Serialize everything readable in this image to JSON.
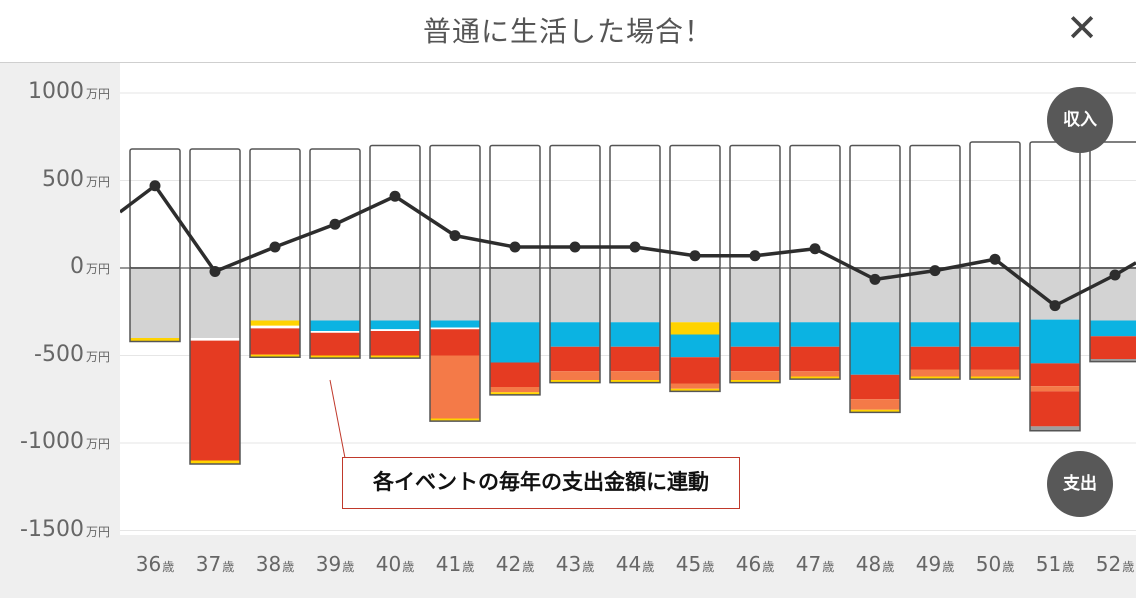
{
  "header": {
    "title": "普通に生活した場合！",
    "close_label": "✕"
  },
  "badges": {
    "income": "収入",
    "expense": "支出"
  },
  "annotation": "各イベントの毎年の支出金額に連動",
  "colors": {
    "base": "#d3d3d3",
    "white_line": "#ffffff",
    "blue": "#0bb3e2",
    "red": "#e53b22",
    "orange": "#f47a48",
    "yellow": "#ffd300",
    "gray": "#9e9e9e",
    "line": "#2d2d2d"
  },
  "chart_data": {
    "type": "bar+line",
    "y_unit": "万円",
    "x_unit": "歳",
    "yticks": [
      1000,
      500,
      0,
      -500,
      -1000,
      -1500
    ],
    "ylim": [
      -1660,
      1100
    ],
    "categories": [
      "36",
      "37",
      "38",
      "39",
      "40",
      "41",
      "42",
      "43",
      "44",
      "45",
      "46",
      "47",
      "48",
      "49",
      "50",
      "51",
      "52"
    ],
    "income": [
      680,
      680,
      680,
      680,
      700,
      700,
      700,
      700,
      700,
      700,
      700,
      700,
      700,
      700,
      720,
      720,
      720
    ],
    "balance_line": [
      470,
      -20,
      120,
      250,
      410,
      185,
      120,
      120,
      120,
      70,
      70,
      110,
      -65,
      -15,
      50,
      -215,
      -40
    ],
    "balance_line_edges": {
      "left": 320,
      "right": 30
    },
    "expense_segments": [
      [
        {
          "c": "base",
          "v": 400
        },
        {
          "c": "yellow",
          "v": 20
        }
      ],
      [
        {
          "c": "base",
          "v": 400
        },
        {
          "c": "white_line",
          "v": 15
        },
        {
          "c": "red",
          "v": 685
        },
        {
          "c": "yellow",
          "v": 20
        }
      ],
      [
        {
          "c": "base",
          "v": 300
        },
        {
          "c": "yellow",
          "v": 30
        },
        {
          "c": "white_line",
          "v": 15
        },
        {
          "c": "red",
          "v": 150
        },
        {
          "c": "yellow",
          "v": 15
        }
      ],
      [
        {
          "c": "base",
          "v": 300
        },
        {
          "c": "blue",
          "v": 60
        },
        {
          "c": "white_line",
          "v": 10
        },
        {
          "c": "red",
          "v": 130
        },
        {
          "c": "yellow",
          "v": 15
        }
      ],
      [
        {
          "c": "base",
          "v": 300
        },
        {
          "c": "blue",
          "v": 50
        },
        {
          "c": "white_line",
          "v": 10
        },
        {
          "c": "red",
          "v": 140
        },
        {
          "c": "yellow",
          "v": 15
        }
      ],
      [
        {
          "c": "base",
          "v": 300
        },
        {
          "c": "blue",
          "v": 40
        },
        {
          "c": "white_line",
          "v": 10
        },
        {
          "c": "red",
          "v": 150
        },
        {
          "c": "orange",
          "v": 360
        },
        {
          "c": "yellow",
          "v": 15
        }
      ],
      [
        {
          "c": "base",
          "v": 310
        },
        {
          "c": "blue",
          "v": 230
        },
        {
          "c": "red",
          "v": 140
        },
        {
          "c": "orange",
          "v": 30
        },
        {
          "c": "yellow",
          "v": 15
        }
      ],
      [
        {
          "c": "base",
          "v": 310
        },
        {
          "c": "blue",
          "v": 140
        },
        {
          "c": "red",
          "v": 140
        },
        {
          "c": "orange",
          "v": 50
        },
        {
          "c": "yellow",
          "v": 15
        }
      ],
      [
        {
          "c": "base",
          "v": 310
        },
        {
          "c": "blue",
          "v": 140
        },
        {
          "c": "red",
          "v": 140
        },
        {
          "c": "orange",
          "v": 50
        },
        {
          "c": "yellow",
          "v": 15
        }
      ],
      [
        {
          "c": "base",
          "v": 310
        },
        {
          "c": "yellow",
          "v": 70
        },
        {
          "c": "blue",
          "v": 130
        },
        {
          "c": "red",
          "v": 150
        },
        {
          "c": "orange",
          "v": 30
        },
        {
          "c": "yellow",
          "v": 15
        }
      ],
      [
        {
          "c": "base",
          "v": 310
        },
        {
          "c": "blue",
          "v": 140
        },
        {
          "c": "red",
          "v": 140
        },
        {
          "c": "orange",
          "v": 50
        },
        {
          "c": "yellow",
          "v": 15
        }
      ],
      [
        {
          "c": "base",
          "v": 310
        },
        {
          "c": "blue",
          "v": 140
        },
        {
          "c": "red",
          "v": 140
        },
        {
          "c": "orange",
          "v": 30
        },
        {
          "c": "yellow",
          "v": 15
        }
      ],
      [
        {
          "c": "base",
          "v": 310
        },
        {
          "c": "blue",
          "v": 300
        },
        {
          "c": "red",
          "v": 140
        },
        {
          "c": "orange",
          "v": 60
        },
        {
          "c": "yellow",
          "v": 15
        }
      ],
      [
        {
          "c": "base",
          "v": 310
        },
        {
          "c": "blue",
          "v": 140
        },
        {
          "c": "red",
          "v": 130
        },
        {
          "c": "orange",
          "v": 40
        },
        {
          "c": "yellow",
          "v": 15
        }
      ],
      [
        {
          "c": "base",
          "v": 310
        },
        {
          "c": "blue",
          "v": 140
        },
        {
          "c": "red",
          "v": 130
        },
        {
          "c": "orange",
          "v": 40
        },
        {
          "c": "yellow",
          "v": 15
        }
      ],
      [
        {
          "c": "base",
          "v": 295
        },
        {
          "c": "blue",
          "v": 250
        },
        {
          "c": "red",
          "v": 130
        },
        {
          "c": "orange",
          "v": 30
        },
        {
          "c": "red",
          "v": 200
        },
        {
          "c": "gray",
          "v": 25
        }
      ],
      [
        {
          "c": "base",
          "v": 300
        },
        {
          "c": "blue",
          "v": 90
        },
        {
          "c": "red",
          "v": 130
        },
        {
          "c": "gray",
          "v": 15
        }
      ]
    ]
  }
}
